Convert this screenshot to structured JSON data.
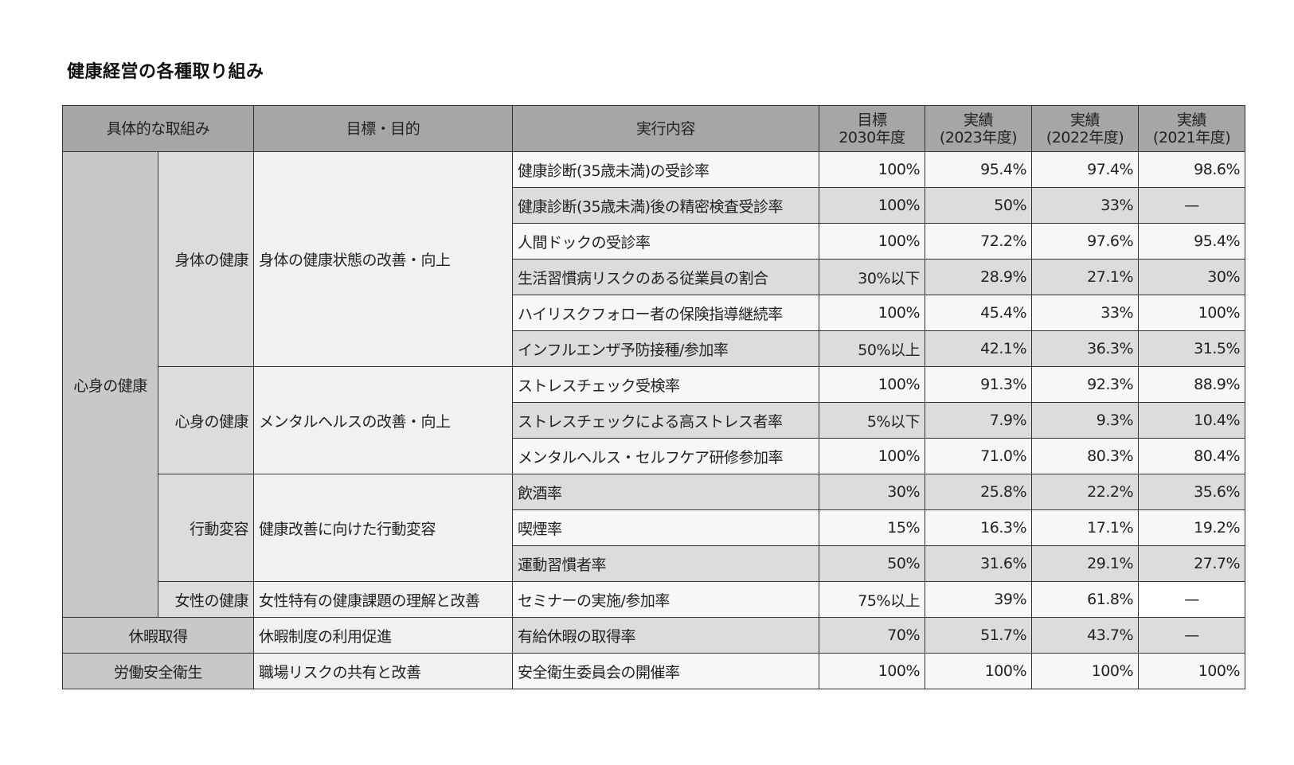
{
  "title": "健康経営の各種取り組み",
  "headers": {
    "category": "具体的な取組み",
    "goal": "目標・目的",
    "item": "実行内容",
    "target_line1": "目標",
    "target_line2": "2030年度",
    "y2023_line1": "実績",
    "y2023_line2": "(2023年度)",
    "y2022_line1": "実績",
    "y2022_line2": "(2022年度)",
    "y2021_line1": "実績",
    "y2021_line2": "(2021年度)"
  },
  "categories": {
    "mind_body": "心身の健康",
    "vacation": "休暇取得",
    "safety": "労働安全衛生"
  },
  "groups": [
    {
      "sub": "身体の健康",
      "goal": "身体の健康状態の改善・向上"
    },
    {
      "sub": "心身の健康",
      "goal": "メンタルヘルスの改善・向上"
    },
    {
      "sub": "行動変容",
      "goal": "健康改善に向けた行動変容"
    },
    {
      "sub": "女性の健康",
      "goal": "女性特有の健康課題の理解と改善"
    },
    {
      "sub": "",
      "goal": "休暇制度の利用促進"
    },
    {
      "sub": "",
      "goal": "職場リスクの共有と改善"
    }
  ],
  "rows": [
    {
      "item": "健康診断(35歳未満)の受診率",
      "target": "100%",
      "y2023": "95.4%",
      "y2022": "97.4%",
      "y2021": "98.6%"
    },
    {
      "item": "健康診断(35歳未満)後の精密検査受診率",
      "target": "100%",
      "y2023": "50%",
      "y2022": "33%",
      "y2021": "—"
    },
    {
      "item": "人間ドックの受診率",
      "target": "100%",
      "y2023": "72.2%",
      "y2022": "97.6%",
      "y2021": "95.4%"
    },
    {
      "item": "生活習慣病リスクのある従業員の割合",
      "target": "30%以下",
      "y2023": "28.9%",
      "y2022": "27.1%",
      "y2021": "30%"
    },
    {
      "item": "ハイリスクフォロー者の保険指導継続率",
      "target": "100%",
      "y2023": "45.4%",
      "y2022": "33%",
      "y2021": "100%"
    },
    {
      "item": "インフルエンザ予防接種/参加率",
      "target": "50%以上",
      "y2023": "42.1%",
      "y2022": "36.3%",
      "y2021": "31.5%"
    },
    {
      "item": "ストレスチェック受検率",
      "target": "100%",
      "y2023": "91.3%",
      "y2022": "92.3%",
      "y2021": "88.9%"
    },
    {
      "item": "ストレスチェックによる高ストレス者率",
      "target": "5%以下",
      "y2023": "7.9%",
      "y2022": "9.3%",
      "y2021": "10.4%"
    },
    {
      "item": "メンタルヘルス・セルフケア研修参加率",
      "target": "100%",
      "y2023": "71.0%",
      "y2022": "80.3%",
      "y2021": "80.4%"
    },
    {
      "item": "飲酒率",
      "target": "30%",
      "y2023": "25.8%",
      "y2022": "22.2%",
      "y2021": "35.6%"
    },
    {
      "item": "喫煙率",
      "target": "15%",
      "y2023": "16.3%",
      "y2022": "17.1%",
      "y2021": "19.2%"
    },
    {
      "item": "運動習慣者率",
      "target": "50%",
      "y2023": "31.6%",
      "y2022": "29.1%",
      "y2021": "27.7%"
    },
    {
      "item": "セミナーの実施/参加率",
      "target": "75%以上",
      "y2023": "39%",
      "y2022": "61.8%",
      "y2021": "—"
    },
    {
      "item": "有給休暇の取得率",
      "target": "70%",
      "y2023": "51.7%",
      "y2022": "43.7%",
      "y2021": "—"
    },
    {
      "item": "安全衛生委員会の開催率",
      "target": "100%",
      "y2023": "100%",
      "y2022": "100%",
      "y2021": "100%"
    }
  ]
}
